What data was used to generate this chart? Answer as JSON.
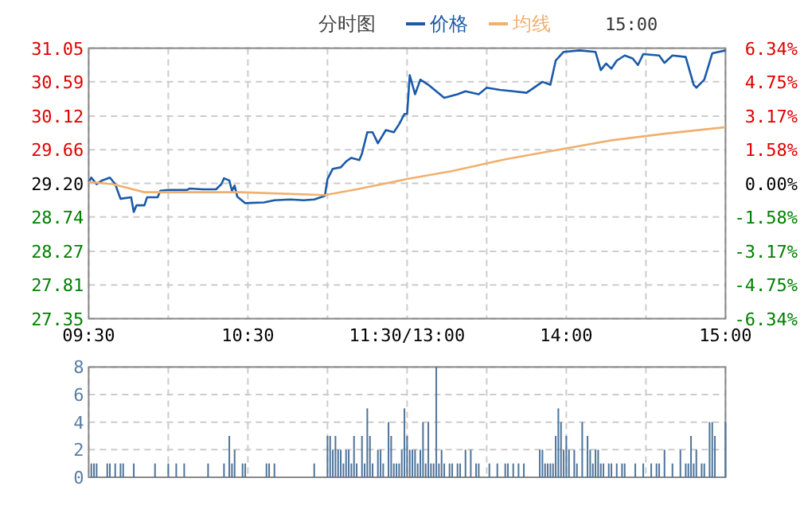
{
  "chart_data": [
    {
      "type": "line",
      "title": "分时图",
      "annotations": [
        "15:00"
      ],
      "legend": "top",
      "grid": true,
      "categories": [
        "09:30",
        null,
        null,
        null,
        null,
        null,
        null,
        null,
        null,
        null,
        null,
        null,
        null,
        null,
        null,
        null,
        null,
        null,
        null,
        null,
        null,
        null,
        null,
        null,
        null,
        null,
        null,
        null,
        null,
        null,
        null,
        null,
        null,
        null,
        null,
        null,
        null,
        null,
        null,
        null,
        null,
        null,
        null,
        null,
        null,
        null,
        null,
        null,
        null,
        null,
        null,
        null,
        null,
        null,
        null,
        null,
        null,
        null,
        null,
        null,
        "10:30",
        null,
        null,
        null,
        null,
        null,
        null,
        null,
        null,
        null,
        null,
        null,
        null,
        null,
        null,
        null,
        null,
        null,
        null,
        null,
        null,
        null,
        null,
        null,
        null,
        null,
        null,
        null,
        null,
        null,
        null,
        null,
        null,
        null,
        null,
        null,
        null,
        null,
        null,
        null,
        null,
        null,
        null,
        null,
        null,
        null,
        null,
        null,
        null,
        null,
        null,
        null,
        null,
        null,
        null,
        null,
        null,
        null,
        null,
        null,
        "11:30/13:00",
        null,
        null,
        null,
        null,
        null,
        null,
        null,
        null,
        null,
        null,
        null,
        null,
        null,
        null,
        null,
        null,
        null,
        null,
        null,
        null,
        null,
        null,
        null,
        null,
        null,
        null,
        null,
        null,
        null,
        null,
        null,
        null,
        null,
        null,
        null,
        null,
        null,
        null,
        null,
        null,
        null,
        null,
        null,
        null,
        null,
        null,
        null,
        null,
        null,
        null,
        null,
        null,
        null,
        null,
        null,
        null,
        null,
        null,
        null,
        "14:00",
        null,
        null,
        null,
        null,
        null,
        null,
        null,
        null,
        null,
        null,
        null,
        null,
        null,
        null,
        null,
        null,
        null,
        null,
        null,
        null,
        null,
        null,
        null,
        null,
        null,
        null,
        null,
        null,
        null,
        null,
        null,
        null,
        null,
        null,
        null,
        null,
        null,
        null,
        null,
        null,
        null,
        null,
        null,
        null,
        null,
        null,
        null,
        null,
        null,
        null,
        null,
        null,
        null,
        null,
        null,
        null,
        null,
        null,
        null,
        "15:00"
      ],
      "ylim": [
        27.35,
        31.05
      ],
      "yticks": [
        {
          "value": 27.35,
          "label": "27.35"
        },
        {
          "value": 27.81,
          "label": "27.81"
        },
        {
          "value": 28.27,
          "label": "28.27"
        },
        {
          "value": 28.74,
          "label": "28.74"
        },
        {
          "value": 29.2,
          "label": "29.20"
        },
        {
          "value": 29.66,
          "label": "29.66"
        },
        {
          "value": 30.12,
          "label": "30.12"
        },
        {
          "value": 30.59,
          "label": "30.59"
        },
        {
          "value": 31.05,
          "label": "31.05"
        }
      ],
      "y2lim": [
        -6.34,
        6.34
      ],
      "y2ticks": [
        {
          "value": -6.34,
          "label": "-6.34%"
        },
        {
          "value": -4.75,
          "label": "-4.75%"
        },
        {
          "value": -3.17,
          "label": "-3.17%"
        },
        {
          "value": -1.58,
          "label": "-1.58%"
        },
        {
          "value": 0,
          "label": "0.00%"
        },
        {
          "value": 1.58,
          "label": "1.58%"
        },
        {
          "value": 3.17,
          "label": "3.17%"
        },
        {
          "value": 4.75,
          "label": "4.75%"
        },
        {
          "value": 6.34,
          "label": "6.34%"
        }
      ],
      "series": [
        {
          "name": "价格",
          "color": "#1a5aa8",
          "values": [
            29.22,
            29.28,
            null,
            29.19,
            null,
            29.24,
            null,
            null,
            29.28,
            null,
            29.19,
            null,
            28.99,
            null,
            null,
            null,
            29.01,
            28.81,
            28.9,
            null,
            null,
            28.9,
            29.01,
            null,
            null,
            null,
            29.01,
            29.1,
            null,
            null,
            29.11,
            null,
            null,
            null,
            null,
            null,
            null,
            29.11,
            29.13,
            null,
            null,
            null,
            null,
            29.12,
            null,
            null,
            null,
            null,
            29.12,
            null,
            29.19,
            29.27,
            null,
            29.24,
            29.1,
            29.17,
            29.02,
            null,
            null,
            28.93,
            null,
            null,
            null,
            null,
            null,
            null,
            28.94,
            null,
            null,
            null,
            28.97,
            null,
            null,
            null,
            null,
            null,
            28.98,
            null,
            null,
            null,
            null,
            28.97,
            null,
            null,
            null,
            28.98,
            null,
            null,
            null,
            29.03,
            29.26,
            null,
            29.4,
            null,
            null,
            29.42,
            null,
            29.5,
            null,
            29.55,
            null,
            null,
            29.52,
            29.61,
            null,
            29.9,
            null,
            29.9,
            null,
            29.75,
            null,
            null,
            29.93,
            null,
            null,
            29.9,
            null,
            30.01,
            null,
            30.15,
            30.15,
            30.68,
            null,
            30.42,
            null,
            30.62,
            null,
            null,
            30.55,
            null,
            null,
            30.46,
            null,
            null,
            30.37,
            null,
            null,
            null,
            null,
            30.42,
            null,
            null,
            30.46,
            null,
            null,
            null,
            null,
            30.42,
            null,
            null,
            30.51,
            null,
            null,
            null,
            null,
            30.48,
            null,
            null,
            null,
            null,
            30.46,
            null,
            null,
            null,
            null,
            30.44,
            null,
            30.49,
            null,
            null,
            null,
            30.59,
            null,
            null,
            30.55,
            null,
            30.88,
            null,
            null,
            31.0,
            null,
            null,
            null,
            null,
            null,
            31.02,
            null,
            null,
            null,
            null,
            null,
            31.0,
            null,
            30.75,
            null,
            30.84,
            null,
            30.77,
            null,
            30.88,
            null,
            null,
            30.95,
            null,
            null,
            30.91,
            null,
            30.82,
            null,
            30.97,
            null,
            null,
            null,
            null,
            null,
            30.95,
            null,
            30.85,
            null,
            null,
            30.95,
            null,
            null,
            null,
            null,
            30.93,
            null,
            null,
            30.55,
            30.51,
            null,
            null,
            30.62,
            null,
            null,
            30.98,
            null,
            null,
            null,
            null,
            31.02
          ]
        },
        {
          "name": "均线",
          "color": "#f0b070",
          "values": [
            29.22,
            null,
            null,
            null,
            null,
            null,
            null,
            null,
            null,
            29.19,
            null,
            null,
            null,
            null,
            null,
            null,
            null,
            null,
            null,
            null,
            null,
            29.08,
            null,
            null,
            null,
            null,
            null,
            null,
            null,
            null,
            null,
            null,
            null,
            null,
            null,
            null,
            null,
            null,
            null,
            null,
            null,
            null,
            null,
            null,
            null,
            null,
            null,
            null,
            null,
            null,
            null,
            null,
            null,
            null,
            null,
            null,
            null,
            29.08,
            null,
            null,
            null,
            null,
            null,
            null,
            null,
            null,
            null,
            null,
            null,
            null,
            null,
            null,
            null,
            null,
            null,
            null,
            null,
            null,
            null,
            null,
            null,
            null,
            null,
            null,
            null,
            null,
            null,
            null,
            null,
            29.04,
            null,
            null,
            null,
            null,
            null,
            null,
            null,
            null,
            null,
            null,
            null,
            29.12,
            null,
            null,
            null,
            null,
            null,
            null,
            null,
            null,
            null,
            null,
            null,
            null,
            null,
            null,
            null,
            null,
            null,
            null,
            29.26,
            null,
            null,
            null,
            null,
            null,
            null,
            null,
            null,
            null,
            null,
            null,
            null,
            null,
            null,
            null,
            null,
            29.37,
            null,
            null,
            null,
            null,
            null,
            null,
            null,
            null,
            null,
            null,
            null,
            null,
            null,
            null,
            null,
            null,
            null,
            null,
            null,
            29.53,
            null,
            null,
            null,
            null,
            null,
            null,
            null,
            null,
            null,
            null,
            null,
            null,
            null,
            null,
            null,
            null,
            null,
            null,
            null,
            29.66,
            null,
            null,
            null,
            null,
            null,
            null,
            null,
            null,
            null,
            null,
            null,
            null,
            null,
            null,
            null,
            null,
            null,
            null,
            null,
            29.79,
            null,
            null,
            null,
            null,
            null,
            null,
            null,
            null,
            null,
            null,
            null,
            null,
            null,
            null,
            null,
            null,
            null,
            null,
            null,
            29.88,
            null,
            null,
            null,
            null,
            null,
            null,
            null,
            null,
            null,
            null,
            null,
            null,
            null,
            null,
            null,
            null,
            null,
            null,
            null,
            null,
            null,
            null,
            29.97
          ]
        }
      ]
    },
    {
      "type": "bar",
      "grid": true,
      "tick_labels": "y",
      "color": "#4f7499",
      "categories": [
        null,
        null,
        null,
        null,
        null,
        null,
        null,
        null,
        null,
        null,
        null,
        null,
        null,
        null,
        null,
        null,
        null,
        null,
        null,
        null,
        null,
        null,
        null,
        null,
        null,
        null,
        null,
        null,
        null,
        null,
        null,
        null,
        null,
        null,
        null,
        null,
        null,
        null,
        null,
        null,
        null,
        null,
        null,
        null,
        null,
        null,
        null,
        null,
        null,
        null,
        null,
        null,
        null,
        null,
        null,
        null,
        null,
        null,
        null,
        null,
        null,
        null,
        null,
        null,
        null,
        null,
        null,
        null,
        null,
        null,
        null,
        null,
        null,
        null,
        null,
        null,
        null,
        null,
        null,
        null,
        null,
        null,
        null,
        null,
        null,
        null,
        null,
        null,
        null,
        null,
        null,
        null,
        null,
        null,
        null,
        null,
        null,
        null,
        null,
        null,
        null,
        null,
        null,
        null,
        null,
        null,
        null,
        null,
        null,
        null,
        null,
        null,
        null,
        null,
        null,
        null,
        null,
        null,
        null,
        null,
        null,
        null,
        null,
        null,
        null,
        null,
        null,
        null,
        null,
        null,
        null,
        null,
        null,
        null,
        null,
        null,
        null,
        null,
        null,
        null,
        null,
        null,
        null,
        null,
        null,
        null,
        null,
        null,
        null,
        null,
        null,
        null,
        null,
        null,
        null,
        null,
        null,
        null,
        null,
        null,
        null,
        null,
        null,
        null,
        null,
        null,
        null,
        null,
        null,
        null,
        null,
        null,
        null,
        null,
        null,
        null,
        null,
        null,
        null,
        null,
        null,
        null,
        null,
        null,
        null,
        null,
        null,
        null,
        null,
        null,
        null,
        null,
        null,
        null,
        null,
        null,
        null,
        null,
        null,
        null,
        null,
        null,
        null,
        null,
        null,
        null,
        null,
        null,
        null,
        null,
        null,
        null,
        null,
        null,
        null,
        null,
        null,
        null,
        null,
        null,
        null,
        null,
        null,
        null,
        null,
        null,
        null,
        null,
        null,
        null,
        null,
        null,
        null,
        null,
        null,
        null,
        null,
        null,
        null,
        null,
        null
      ],
      "ylim": [
        0,
        8
      ],
      "yticks": [
        0,
        2,
        4,
        6,
        8
      ],
      "values": [
        null,
        1,
        1,
        1,
        null,
        null,
        null,
        1,
        1,
        null,
        1,
        null,
        1,
        1,
        null,
        null,
        null,
        1,
        null,
        null,
        null,
        null,
        null,
        null,
        null,
        1,
        null,
        null,
        null,
        null,
        1,
        null,
        null,
        1,
        null,
        null,
        1,
        null,
        null,
        null,
        null,
        null,
        null,
        null,
        null,
        1,
        null,
        null,
        null,
        null,
        null,
        1,
        null,
        3,
        1,
        2,
        null,
        null,
        1,
        1,
        null,
        null,
        null,
        null,
        null,
        null,
        null,
        1,
        1,
        null,
        1,
        null,
        null,
        null,
        null,
        null,
        null,
        null,
        null,
        null,
        null,
        null,
        null,
        null,
        null,
        1,
        null,
        null,
        null,
        null,
        3,
        3,
        2,
        3,
        2,
        2,
        1,
        2,
        2,
        1,
        3,
        1,
        null,
        3,
        1,
        5,
        3,
        1,
        null,
        2,
        2,
        1,
        null,
        4,
        3,
        1,
        1,
        1,
        2,
        5,
        3,
        2,
        2,
        2,
        1,
        2,
        4,
        1,
        4,
        1,
        1,
        8,
        1,
        2,
        1,
        null,
        1,
        1,
        null,
        1,
        1,
        null,
        2,
        null,
        2,
        null,
        1,
        1,
        null,
        null,
        null,
        1,
        null,
        null,
        1,
        null,
        null,
        1,
        1,
        null,
        1,
        null,
        1,
        null,
        1,
        null,
        null,
        null,
        null,
        null,
        2,
        2,
        1,
        1,
        1,
        1,
        3,
        5,
        4,
        2,
        3,
        2,
        null,
        2,
        1,
        null,
        4,
        null,
        3,
        2,
        1,
        2,
        2,
        1,
        1,
        null,
        1,
        1,
        null,
        1,
        null,
        1,
        1,
        null,
        null,
        null,
        1,
        null,
        null,
        1,
        null,
        null,
        1,
        null,
        1,
        1,
        null,
        2,
        null,
        null,
        1,
        null,
        null,
        2,
        null,
        1,
        1,
        3,
        1,
        2,
        null,
        1,
        1,
        null,
        4,
        4,
        3,
        null,
        null,
        null,
        4
      ]
    }
  ]
}
